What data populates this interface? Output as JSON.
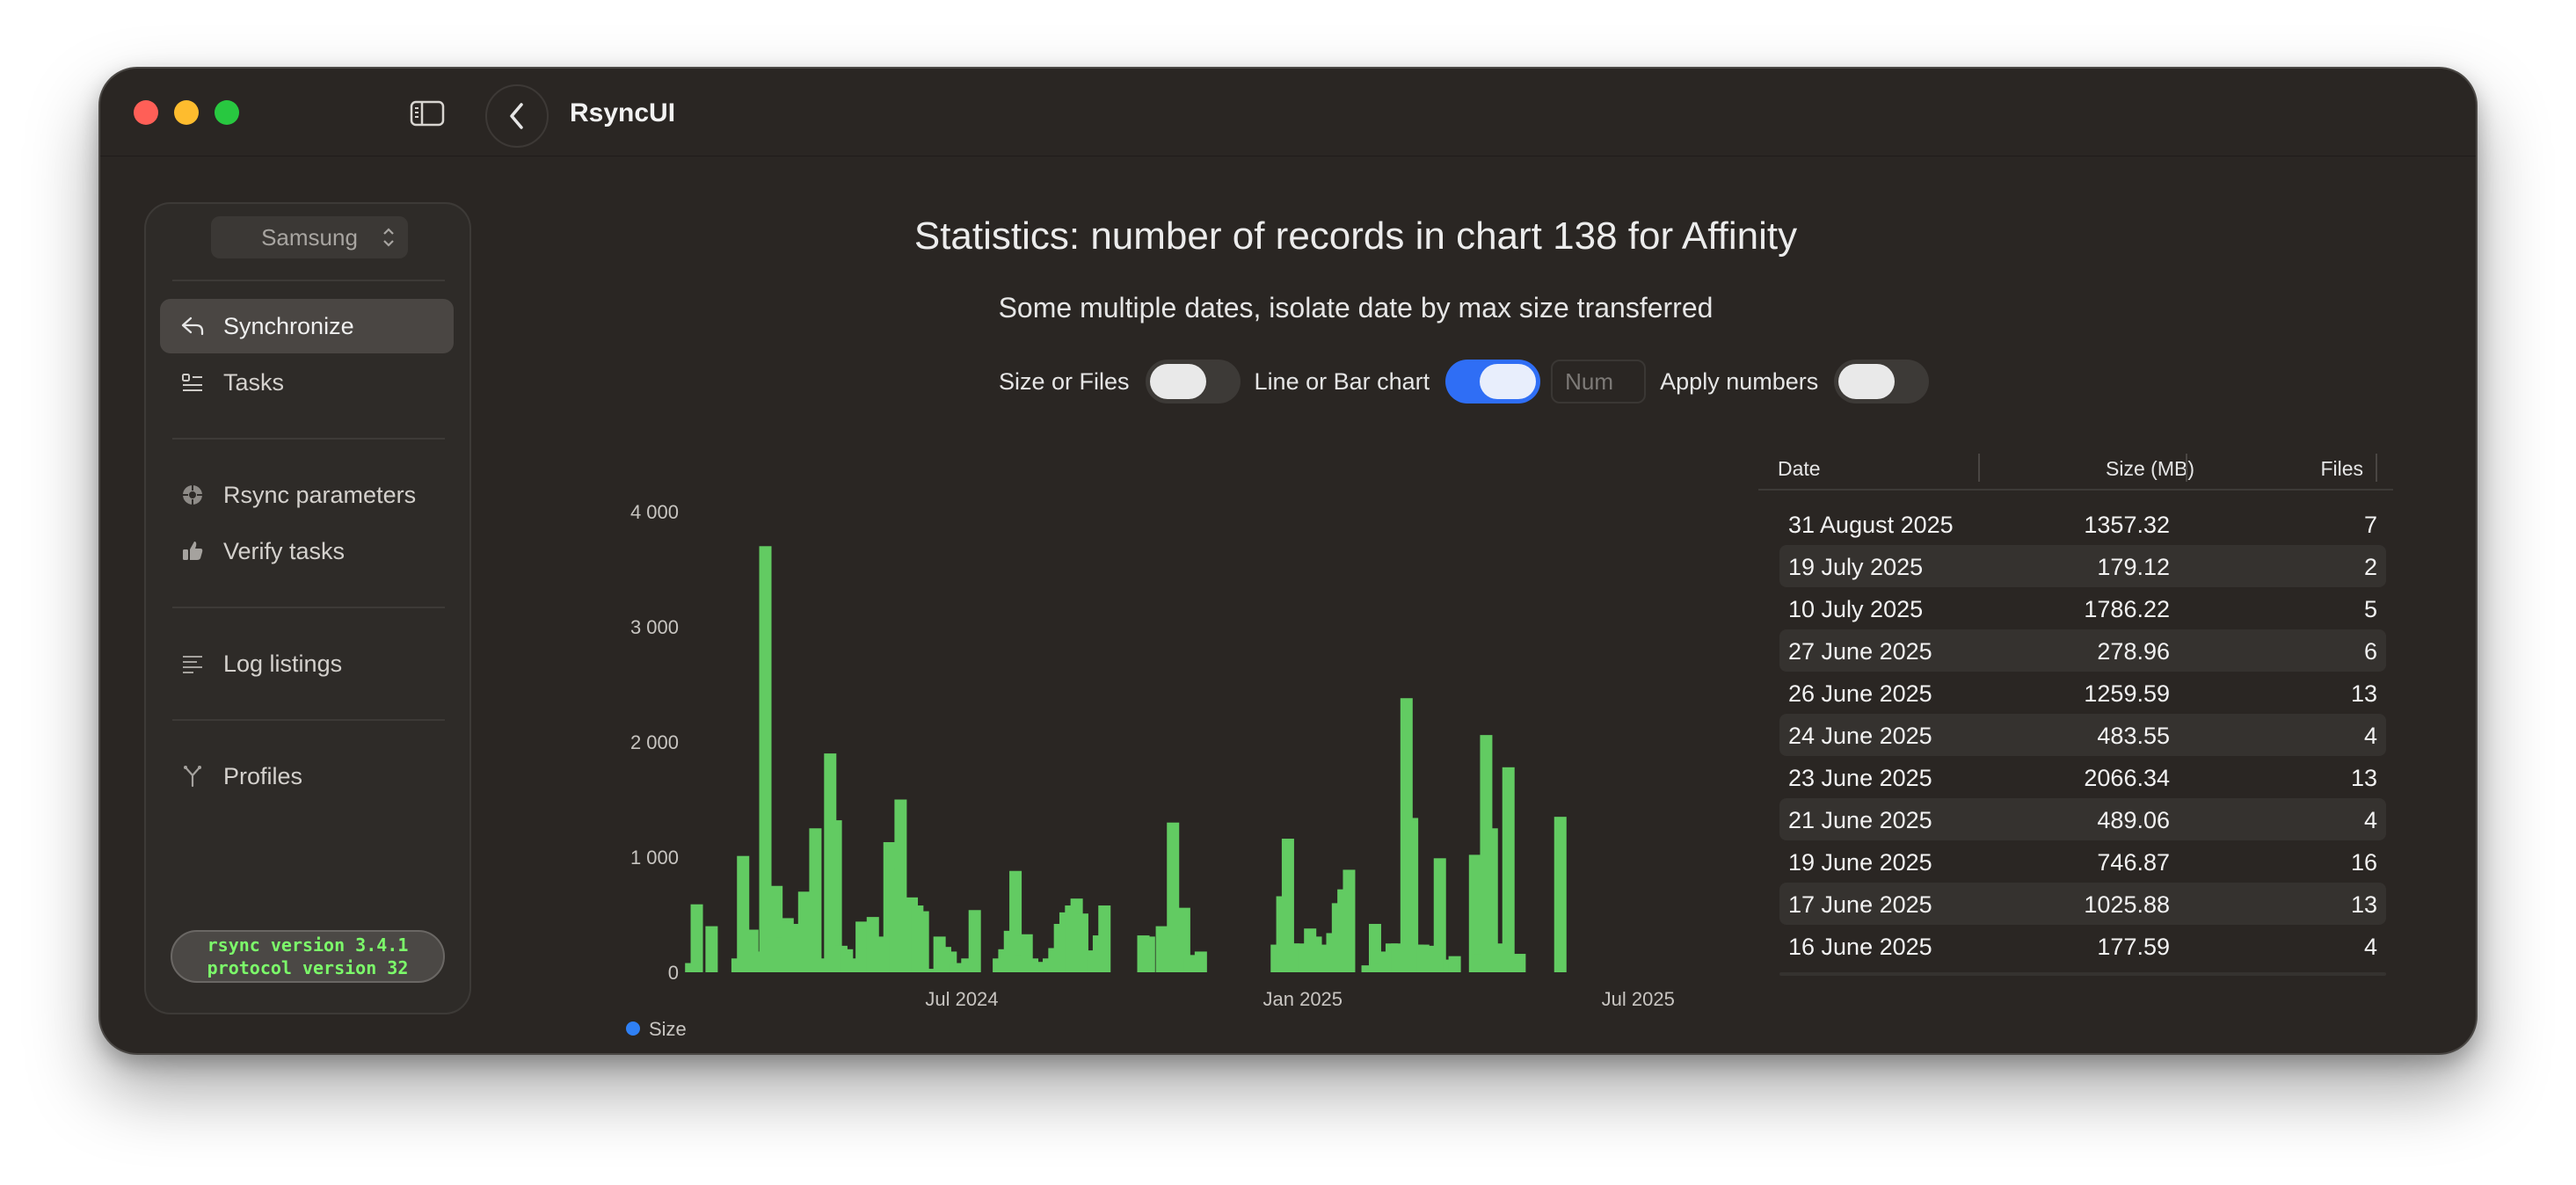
{
  "app": {
    "title": "RsyncUI"
  },
  "sidebar": {
    "device_select": "Samsung",
    "items": [
      {
        "label": "Synchronize",
        "icon": "sync-icon",
        "active": true
      },
      {
        "label": "Tasks",
        "icon": "tasks-icon"
      },
      {
        "label": "Rsync parameters",
        "icon": "parameters-icon"
      },
      {
        "label": "Verify tasks",
        "icon": "thumbs-up-icon"
      },
      {
        "label": "Log listings",
        "icon": "list-icon"
      },
      {
        "label": "Profiles",
        "icon": "profiles-icon"
      }
    ],
    "version_line1": "rsync  version 3.4.1",
    "version_line2": "protocol version 32"
  },
  "main": {
    "title": "Statistics: number of records in chart 138 for Affinity",
    "subtitle": "Some multiple dates, isolate date by max size transferred",
    "controls": {
      "size_or_files_label": "Size or Files",
      "size_or_files_on": false,
      "line_or_bar_label": "Line or Bar chart",
      "line_or_bar_on": true,
      "num_placeholder": "Num",
      "apply_numbers_label": "Apply numbers",
      "apply_numbers_on": false
    }
  },
  "chart_data": {
    "type": "bar",
    "ylim": [
      0,
      4000
    ],
    "yticks": [
      "4 000",
      "3 000",
      "2 000",
      "1 000",
      "0"
    ],
    "ytick_values": [
      4000,
      3000,
      2000,
      1000,
      0
    ],
    "xtick_labels": [
      "Jul 2024",
      "Jan 2025",
      "Jul 2025"
    ],
    "xtick_dates": [
      "2024-07-01",
      "2025-01-01",
      "2025-07-01"
    ],
    "xlim": [
      "2024-02-04",
      "2025-09-20"
    ],
    "legend": [
      {
        "name": "Size",
        "color": "#2f80f5"
      }
    ],
    "bar_color": "#62cb62",
    "bars": [
      {
        "x": "2024-02-06",
        "y": 80
      },
      {
        "x": "2024-02-09",
        "y": 590
      },
      {
        "x": "2024-02-17",
        "y": 400
      },
      {
        "x": "2024-03-02",
        "y": 120
      },
      {
        "x": "2024-03-05",
        "y": 1010
      },
      {
        "x": "2024-03-08",
        "y": 320
      },
      {
        "x": "2024-03-10",
        "y": 370
      },
      {
        "x": "2024-03-13",
        "y": 180
      },
      {
        "x": "2024-03-17",
        "y": 3700
      },
      {
        "x": "2024-03-20",
        "y": 600
      },
      {
        "x": "2024-03-23",
        "y": 750
      },
      {
        "x": "2024-03-26",
        "y": 300
      },
      {
        "x": "2024-03-29",
        "y": 470
      },
      {
        "x": "2024-04-01",
        "y": 250
      },
      {
        "x": "2024-04-04",
        "y": 420
      },
      {
        "x": "2024-04-07",
        "y": 700
      },
      {
        "x": "2024-04-10",
        "y": 600
      },
      {
        "x": "2024-04-13",
        "y": 1250
      },
      {
        "x": "2024-04-16",
        "y": 120
      },
      {
        "x": "2024-04-21",
        "y": 1900
      },
      {
        "x": "2024-04-24",
        "y": 1320
      },
      {
        "x": "2024-04-27",
        "y": 230
      },
      {
        "x": "2024-04-30",
        "y": 200
      },
      {
        "x": "2024-05-05",
        "y": 120
      },
      {
        "x": "2024-05-08",
        "y": 440
      },
      {
        "x": "2024-05-11",
        "y": 200
      },
      {
        "x": "2024-05-14",
        "y": 480
      },
      {
        "x": "2024-05-17",
        "y": 250
      },
      {
        "x": "2024-05-20",
        "y": 310
      },
      {
        "x": "2024-05-23",
        "y": 1130
      },
      {
        "x": "2024-05-26",
        "y": 900
      },
      {
        "x": "2024-05-29",
        "y": 1500
      },
      {
        "x": "2024-06-01",
        "y": 630
      },
      {
        "x": "2024-06-04",
        "y": 650
      },
      {
        "x": "2024-06-07",
        "y": 580
      },
      {
        "x": "2024-06-10",
        "y": 530
      },
      {
        "x": "2024-06-13",
        "y": 30
      },
      {
        "x": "2024-06-19",
        "y": 310
      },
      {
        "x": "2024-06-22",
        "y": 220
      },
      {
        "x": "2024-06-25",
        "y": 180
      },
      {
        "x": "2024-06-28",
        "y": 80
      },
      {
        "x": "2024-07-04",
        "y": 120
      },
      {
        "x": "2024-07-08",
        "y": 540
      },
      {
        "x": "2024-07-21",
        "y": 120
      },
      {
        "x": "2024-07-24",
        "y": 200
      },
      {
        "x": "2024-07-27",
        "y": 360
      },
      {
        "x": "2024-07-30",
        "y": 880
      },
      {
        "x": "2024-08-02",
        "y": 150
      },
      {
        "x": "2024-08-05",
        "y": 330
      },
      {
        "x": "2024-08-08",
        "y": 120
      },
      {
        "x": "2024-08-11",
        "y": 90
      },
      {
        "x": "2024-08-14",
        "y": 40
      },
      {
        "x": "2024-08-17",
        "y": 120
      },
      {
        "x": "2024-08-20",
        "y": 210
      },
      {
        "x": "2024-08-23",
        "y": 420
      },
      {
        "x": "2024-08-26",
        "y": 520
      },
      {
        "x": "2024-08-29",
        "y": 580
      },
      {
        "x": "2024-09-01",
        "y": 640
      },
      {
        "x": "2024-09-04",
        "y": 510
      },
      {
        "x": "2024-09-07",
        "y": 100
      },
      {
        "x": "2024-09-10",
        "y": 190
      },
      {
        "x": "2024-09-13",
        "y": 320
      },
      {
        "x": "2024-09-16",
        "y": 580
      },
      {
        "x": "2024-10-07",
        "y": 320
      },
      {
        "x": "2024-10-10",
        "y": 310
      },
      {
        "x": "2024-10-17",
        "y": 400
      },
      {
        "x": "2024-10-23",
        "y": 1300
      },
      {
        "x": "2024-10-26",
        "y": 320
      },
      {
        "x": "2024-10-29",
        "y": 560
      },
      {
        "x": "2024-11-01",
        "y": 120
      },
      {
        "x": "2024-11-04",
        "y": 150
      },
      {
        "x": "2024-11-07",
        "y": 180
      },
      {
        "x": "2024-12-18",
        "y": 240
      },
      {
        "x": "2024-12-21",
        "y": 660
      },
      {
        "x": "2024-12-24",
        "y": 1160
      },
      {
        "x": "2024-12-27",
        "y": 250
      },
      {
        "x": "2024-12-30",
        "y": 250
      },
      {
        "x": "2025-01-02",
        "y": 230
      },
      {
        "x": "2025-01-05",
        "y": 380
      },
      {
        "x": "2025-01-08",
        "y": 310
      },
      {
        "x": "2025-01-11",
        "y": 240
      },
      {
        "x": "2025-01-14",
        "y": 110
      },
      {
        "x": "2025-01-17",
        "y": 340
      },
      {
        "x": "2025-01-20",
        "y": 600
      },
      {
        "x": "2025-01-23",
        "y": 720
      },
      {
        "x": "2025-01-26",
        "y": 890
      },
      {
        "x": "2025-02-05",
        "y": 60
      },
      {
        "x": "2025-02-09",
        "y": 420
      },
      {
        "x": "2025-02-12",
        "y": 80
      },
      {
        "x": "2025-02-15",
        "y": 180
      },
      {
        "x": "2025-02-18",
        "y": 250
      },
      {
        "x": "2025-02-21",
        "y": 250
      },
      {
        "x": "2025-02-26",
        "y": 2380
      },
      {
        "x": "2025-03-01",
        "y": 1340
      },
      {
        "x": "2025-03-04",
        "y": 240
      },
      {
        "x": "2025-03-07",
        "y": 240
      },
      {
        "x": "2025-03-10",
        "y": 230
      },
      {
        "x": "2025-03-13",
        "y": 200
      },
      {
        "x": "2025-03-16",
        "y": 990
      },
      {
        "x": "2025-03-21",
        "y": 110
      },
      {
        "x": "2025-03-24",
        "y": 140
      },
      {
        "x": "2025-04-04",
        "y": 1020
      },
      {
        "x": "2025-04-07",
        "y": 160
      },
      {
        "x": "2025-04-10",
        "y": 2060
      },
      {
        "x": "2025-04-13",
        "y": 1250
      },
      {
        "x": "2025-04-16",
        "y": 250
      },
      {
        "x": "2025-04-22",
        "y": 1780
      },
      {
        "x": "2025-04-28",
        "y": 160
      },
      {
        "x": "2025-05-20",
        "y": 1350
      }
    ]
  },
  "table": {
    "columns": [
      "Date",
      "Size (MB)",
      "Files"
    ],
    "rows": [
      [
        "31 August 2025",
        "1357.32",
        "7"
      ],
      [
        "19 July 2025",
        "179.12",
        "2"
      ],
      [
        "10 July 2025",
        "1786.22",
        "5"
      ],
      [
        "27 June 2025",
        "278.96",
        "6"
      ],
      [
        "26 June 2025",
        "1259.59",
        "13"
      ],
      [
        "24 June 2025",
        "483.55",
        "4"
      ],
      [
        "23 June 2025",
        "2066.34",
        "13"
      ],
      [
        "21 June 2025",
        "489.06",
        "4"
      ],
      [
        "19 June 2025",
        "746.87",
        "16"
      ],
      [
        "17 June 2025",
        "1025.88",
        "13"
      ],
      [
        "16 June 2025",
        "177.59",
        "4"
      ]
    ]
  }
}
